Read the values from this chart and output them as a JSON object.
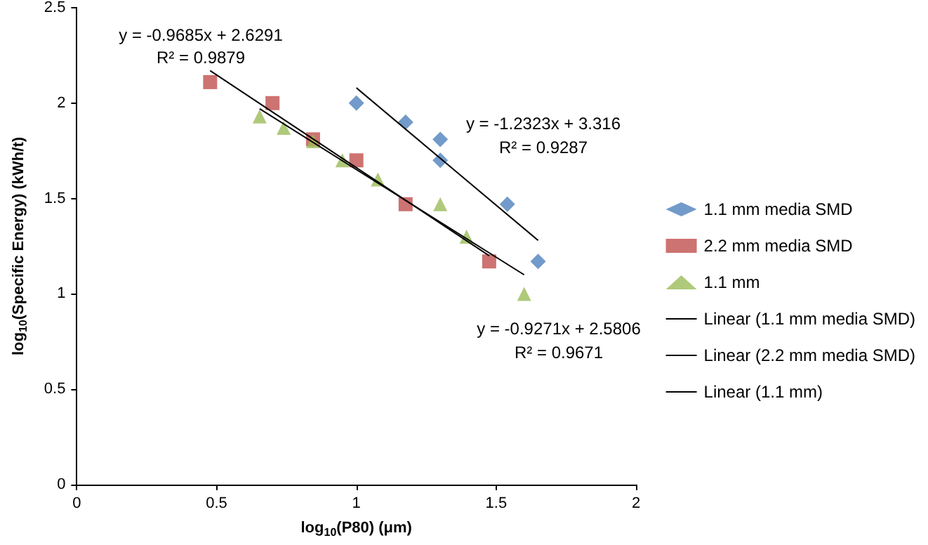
{
  "chart_data": {
    "type": "scatter",
    "xlabel": "log$_{10}$(P80) (μm)",
    "ylabel": "log$_{10}$(Specific Energy) (kWh/t)",
    "xlim": [
      0,
      2
    ],
    "xticks": [
      0,
      0.5,
      1,
      1.5,
      2
    ],
    "ylim": [
      0,
      2.5
    ],
    "yticks": [
      0,
      0.5,
      1,
      1.5,
      2,
      2.5
    ],
    "grid": false,
    "legend": "right",
    "series": [
      {
        "name": "1.1 mm media SMD",
        "color": "#4f81bd",
        "marker": "diamond",
        "x": [
          1.0,
          1.176,
          1.3,
          1.3,
          1.54,
          1.65
        ],
        "values": [
          2.0,
          1.9,
          1.81,
          1.7,
          1.47,
          1.17
        ]
      },
      {
        "name": "2.2 mm media SMD",
        "color": "#c0504d",
        "marker": "square",
        "x": [
          0.477,
          0.7,
          0.845,
          1.0,
          1.176,
          1.475
        ],
        "values": [
          2.11,
          2.0,
          1.81,
          1.7,
          1.47,
          1.17
        ]
      },
      {
        "name": "1.1 mm",
        "color": "#9bbb59",
        "marker": "triangle",
        "x": [
          0.654,
          0.74,
          0.845,
          0.95,
          1.077,
          1.3,
          1.394,
          1.6
        ],
        "values": [
          1.93,
          1.87,
          1.8,
          1.7,
          1.6,
          1.47,
          1.3,
          1.0
        ]
      },
      {
        "name": "Linear (1.1 mm media SMD)",
        "type": "line",
        "color": "#000000",
        "marker": "none",
        "x": [
          1.0,
          1.65
        ],
        "values": [
          2.08,
          1.28
        ]
      },
      {
        "name": "Linear (2.2 mm media SMD)",
        "type": "line",
        "color": "#000000",
        "marker": "none",
        "x": [
          0.477,
          1.475
        ],
        "values": [
          2.17,
          1.2
        ]
      },
      {
        "name": "Linear (1.1 mm)",
        "type": "line",
        "color": "#000000",
        "marker": "none",
        "x": [
          0.654,
          1.6
        ],
        "values": [
          1.97,
          1.1
        ]
      }
    ],
    "annotations": [
      "y = -0.9685x + 2.6291",
      "R² = 0.9879",
      "y = -1.2323x + 3.316",
      "R² = 0.9287",
      "y = -0.9271x + 2.5806",
      "R² = 0.9671"
    ]
  }
}
